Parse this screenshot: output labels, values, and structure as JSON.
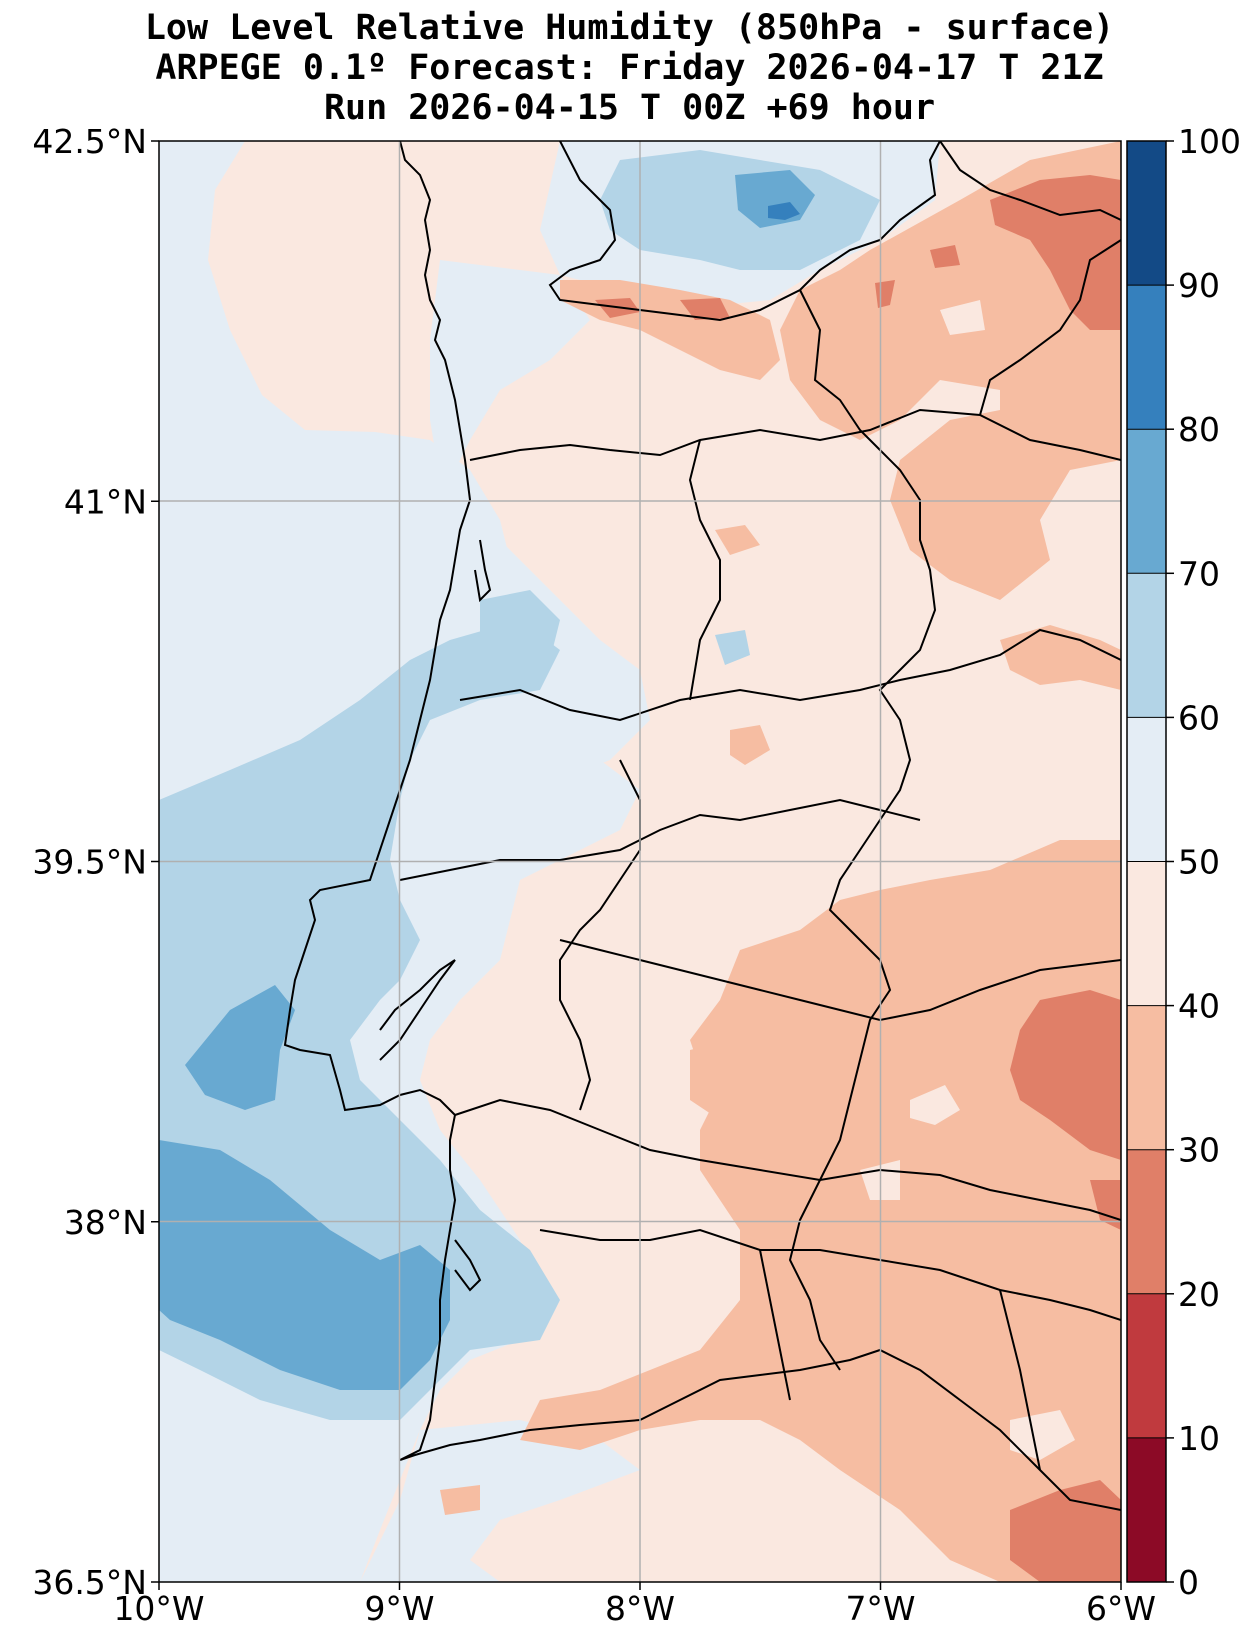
{
  "title": {
    "line1": "Low Level Relative Humidity (850hPa - surface)",
    "line2": "ARPEGE 0.1º Forecast: Friday 2026-04-17 T 21Z",
    "line3": "Run 2026-04-15 T 00Z +69 hour"
  },
  "axes": {
    "lat_ticks": [
      {
        "value": 42.5,
        "label": "42.5°N"
      },
      {
        "value": 41.0,
        "label": "41°N"
      },
      {
        "value": 39.5,
        "label": "39.5°N"
      },
      {
        "value": 38.0,
        "label": "38°N"
      },
      {
        "value": 36.5,
        "label": "36.5°N"
      }
    ],
    "lon_ticks": [
      {
        "value": -10,
        "label": "10°W"
      },
      {
        "value": -9,
        "label": "9°W"
      },
      {
        "value": -8,
        "label": "8°W"
      },
      {
        "value": -7,
        "label": "7°W"
      },
      {
        "value": -6,
        "label": "6°W"
      }
    ],
    "lat_range": [
      36.5,
      42.5
    ],
    "lon_range": [
      -10,
      -6
    ]
  },
  "colorbar": {
    "levels": [
      {
        "value": 0,
        "label": "0",
        "color": "#8c0a26"
      },
      {
        "value": 10,
        "label": "10",
        "color": "#c03a3e"
      },
      {
        "value": 20,
        "label": "20",
        "color": "#e07f68"
      },
      {
        "value": 30,
        "label": "30",
        "color": "#f6bda2"
      },
      {
        "value": 40,
        "label": "40",
        "color": "#fae8e0"
      },
      {
        "value": 50,
        "label": "50",
        "color": "#e4edf5"
      },
      {
        "value": 60,
        "label": "60",
        "color": "#b3d4e7"
      },
      {
        "value": 70,
        "label": "70",
        "color": "#68a9d1"
      },
      {
        "value": 80,
        "label": "80",
        "color": "#3580bd"
      },
      {
        "value": 90,
        "label": "90",
        "color": "#134a86"
      },
      {
        "value": 100,
        "label": "100",
        "color": null
      }
    ]
  },
  "fill_colors": {
    "below_30": "#e07f68",
    "r30_40": "#f6bda2",
    "r40_50": "#fae8e0",
    "r50_60": "#e4edf5",
    "r60_70": "#b3d4e7",
    "r70_80": "#68a9d1",
    "r80_90": "#3580bd"
  }
}
